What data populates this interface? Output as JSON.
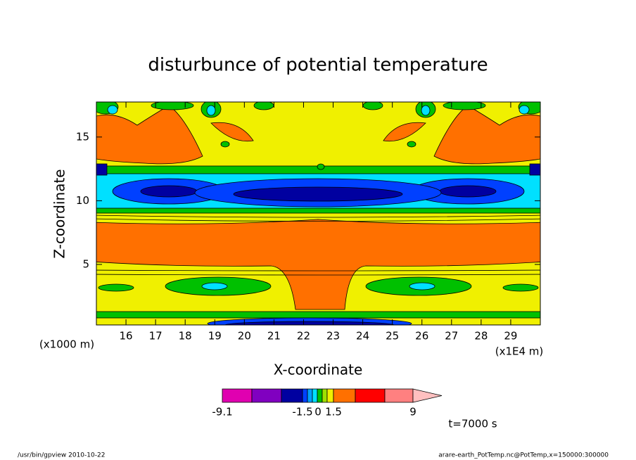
{
  "chart_data": {
    "type": "contour",
    "title": "disturbunce of potential temperature",
    "x_label": "X-coordinate",
    "y_label": "Z-coordinate",
    "x_unit": "(x1E4 m)",
    "y_unit": "(x1000 m)",
    "xlim": [
      15,
      30
    ],
    "xticks": [
      16,
      17,
      18,
      19,
      20,
      21,
      22,
      23,
      24,
      25,
      26,
      27,
      28,
      29
    ],
    "ylim": [
      0.25,
      17.75
    ],
    "yticks": [
      5,
      10,
      15
    ],
    "colorbar": {
      "colors": [
        "#e000b0",
        "#8000c0",
        "#0000a0",
        "#0040ff",
        "#00a0ff",
        "#00e0ff",
        "#00c000",
        "#a0e000",
        "#f0f000",
        "#ff7000",
        "#ff0000",
        "#ff8080",
        "#ffc0c0"
      ],
      "ticks": [
        -9.1,
        -1.5,
        0,
        1.5,
        9
      ]
    },
    "annotation": "t=7000 s",
    "footer_left": "/usr/bin/gpview  2010-10-22",
    "footer_right": "arare-earth_PotTemp.nc@PotTemp,x=150000:300000"
  }
}
